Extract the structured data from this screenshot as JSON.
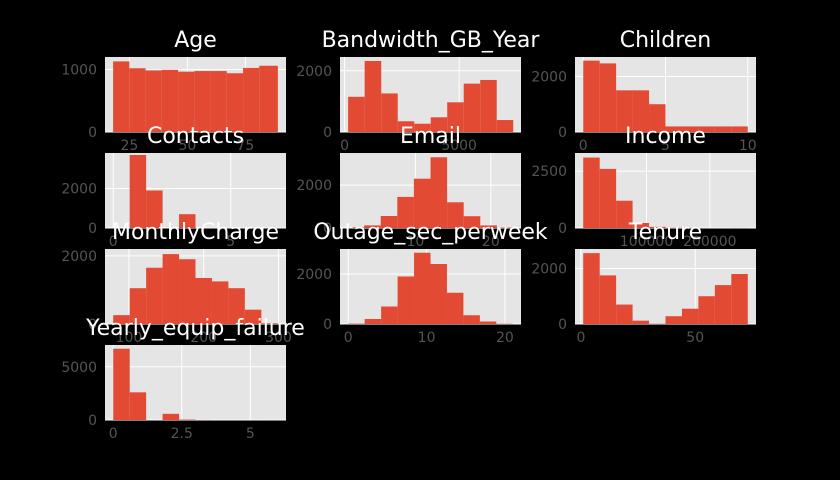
{
  "figure": {
    "background": "#000000",
    "panel_background": "#e5e5e5",
    "grid_color": "#ffffff",
    "bar_color": "#e24a33",
    "title_color": "#ffffff",
    "tick_color": "#555555"
  },
  "chart_data": [
    {
      "type": "bar",
      "title": "Age",
      "grid": true,
      "bins": [
        [
          18,
          25
        ],
        [
          25,
          32
        ],
        [
          32,
          39
        ],
        [
          39,
          46
        ],
        [
          46,
          53
        ],
        [
          53,
          60
        ],
        [
          60,
          67
        ],
        [
          67,
          74
        ],
        [
          74,
          81
        ],
        [
          81,
          89
        ]
      ],
      "values": [
        1130,
        1020,
        985,
        995,
        965,
        975,
        975,
        940,
        1025,
        1060
      ],
      "xlim": [
        14.5,
        92.5
      ],
      "ylim": [
        0,
        1200
      ],
      "xticks": [
        25,
        50,
        75
      ],
      "yticks": [
        0,
        1000
      ]
    },
    {
      "type": "bar",
      "title": "Bandwidth_GB_Year",
      "grid": true,
      "bins": [
        [
          155,
          875
        ],
        [
          875,
          1600
        ],
        [
          1600,
          2320
        ],
        [
          2320,
          3040
        ],
        [
          3040,
          3760
        ],
        [
          3760,
          4480
        ],
        [
          4480,
          5200
        ],
        [
          5200,
          5920
        ],
        [
          5920,
          6640
        ],
        [
          6640,
          7360
        ]
      ],
      "values": [
        1150,
        2320,
        1260,
        350,
        270,
        480,
        970,
        1580,
        1700,
        390
      ],
      "xlim": [
        -200,
        7700
      ],
      "ylim": [
        0,
        2450
      ],
      "xticks": [
        0,
        5000
      ],
      "yticks": [
        0,
        2000
      ]
    },
    {
      "type": "bar",
      "title": "Children",
      "grid": true,
      "bins": [
        [
          0,
          1
        ],
        [
          1,
          2
        ],
        [
          2,
          3
        ],
        [
          3,
          4
        ],
        [
          4,
          5
        ],
        [
          5,
          6
        ],
        [
          6,
          7
        ],
        [
          7,
          8
        ],
        [
          8,
          9
        ],
        [
          9,
          10
        ]
      ],
      "values": [
        2570,
        2470,
        1500,
        1500,
        1000,
        200,
        200,
        200,
        200,
        200
      ],
      "xlim": [
        -0.5,
        10.5
      ],
      "ylim": [
        0,
        2700
      ],
      "xticks": [
        0,
        5,
        10
      ],
      "yticks": [
        0,
        2000
      ]
    },
    {
      "type": "bar",
      "title": "Contacts",
      "grid": true,
      "bins": [
        [
          0,
          0.7
        ],
        [
          0.7,
          1.4
        ],
        [
          1.4,
          2.1
        ],
        [
          2.1,
          2.8
        ],
        [
          2.8,
          3.5
        ],
        [
          3.5,
          4.2
        ],
        [
          4.2,
          4.9
        ],
        [
          4.9,
          5.6
        ],
        [
          5.6,
          6.3
        ],
        [
          6.3,
          7
        ]
      ],
      "values": [
        0,
        3700,
        1900,
        0,
        700,
        0,
        0,
        0,
        0,
        0
      ],
      "xlim": [
        -0.35,
        7.35
      ],
      "ylim": [
        0,
        3800
      ],
      "xticks": [
        0,
        5
      ],
      "yticks": [
        0,
        2000
      ]
    },
    {
      "type": "bar",
      "title": "Email",
      "grid": true,
      "bins": [
        [
          1,
          3.2
        ],
        [
          3.2,
          5.4
        ],
        [
          5.4,
          7.6
        ],
        [
          7.6,
          9.8
        ],
        [
          9.8,
          12
        ],
        [
          12,
          14.2
        ],
        [
          14.2,
          16.4
        ],
        [
          16.4,
          18.6
        ],
        [
          18.6,
          20.8
        ],
        [
          20.8,
          23
        ]
      ],
      "values": [
        30,
        120,
        560,
        1450,
        2300,
        3300,
        1200,
        550,
        120,
        20
      ],
      "xlim": [
        0,
        24
      ],
      "ylim": [
        0,
        3500
      ],
      "xticks": [
        10,
        20
      ],
      "yticks": [
        0,
        2000
      ]
    },
    {
      "type": "bar",
      "title": "Income",
      "grid": true,
      "bins": [
        [
          0,
          26000
        ],
        [
          26000,
          52000
        ],
        [
          52000,
          78000
        ],
        [
          78000,
          104000
        ],
        [
          104000,
          130000
        ],
        [
          130000,
          156000
        ],
        [
          156000,
          182000
        ],
        [
          182000,
          208000
        ],
        [
          208000,
          234000
        ],
        [
          234000,
          260000
        ]
      ],
      "values": [
        3100,
        2600,
        1200,
        220,
        50,
        10,
        5,
        0,
        0,
        3
      ],
      "xlim": [
        -13000,
        273000
      ],
      "ylim": [
        0,
        3300
      ],
      "xticks": [
        100000,
        200000
      ],
      "yticks": [
        0,
        2500
      ]
    },
    {
      "type": "bar",
      "title": "MonthlyCharge",
      "grid": true,
      "bins": [
        [
          79,
          101
        ],
        [
          101,
          123
        ],
        [
          123,
          145
        ],
        [
          145,
          167
        ],
        [
          167,
          189
        ],
        [
          189,
          211
        ],
        [
          211,
          233
        ],
        [
          233,
          255
        ],
        [
          255,
          277
        ],
        [
          277,
          299
        ]
      ],
      "values": [
        260,
        1050,
        1650,
        2050,
        1900,
        1350,
        1250,
        1050,
        420,
        20
      ],
      "xlim": [
        68,
        310
      ],
      "ylim": [
        0,
        2200
      ],
      "xticks": [
        100,
        200,
        300
      ],
      "yticks": [
        0,
        2000
      ]
    },
    {
      "type": "bar",
      "title": "Outage_sec_perweek",
      "grid": true,
      "bins": [
        [
          0,
          2.1
        ],
        [
          2.1,
          4.2
        ],
        [
          4.2,
          6.3
        ],
        [
          6.3,
          8.4
        ],
        [
          8.4,
          10.5
        ],
        [
          10.5,
          12.6
        ],
        [
          12.6,
          14.7
        ],
        [
          14.7,
          16.8
        ],
        [
          16.8,
          18.9
        ],
        [
          18.9,
          21
        ]
      ],
      "values": [
        15,
        200,
        700,
        1900,
        2850,
        2400,
        1250,
        350,
        100,
        10
      ],
      "xlim": [
        -1.05,
        22.05
      ],
      "ylim": [
        0,
        3000
      ],
      "xticks": [
        0,
        10,
        20
      ],
      "yticks": [
        0,
        2000
      ]
    },
    {
      "type": "bar",
      "title": "Tenure",
      "grid": true,
      "bins": [
        [
          1,
          8.2
        ],
        [
          8.2,
          15.4
        ],
        [
          15.4,
          22.6
        ],
        [
          22.6,
          29.8
        ],
        [
          29.8,
          37
        ],
        [
          37,
          44.2
        ],
        [
          44.2,
          51.4
        ],
        [
          51.4,
          58.6
        ],
        [
          58.6,
          65.8
        ],
        [
          65.8,
          73
        ]
      ],
      "values": [
        2550,
        1750,
        700,
        120,
        10,
        280,
        550,
        1000,
        1400,
        1800
      ],
      "xlim": [
        -2.6,
        76.6
      ],
      "ylim": [
        0,
        2700
      ],
      "xticks": [
        0,
        50
      ],
      "yticks": [
        0,
        2000
      ]
    },
    {
      "type": "bar",
      "title": "Yearly_equip_failure",
      "grid": true,
      "bins": [
        [
          0,
          0.6
        ],
        [
          0.6,
          1.2
        ],
        [
          1.2,
          1.8
        ],
        [
          1.8,
          2.4
        ],
        [
          2.4,
          3
        ],
        [
          3,
          3.6
        ],
        [
          3.6,
          4.2
        ],
        [
          4.2,
          4.8
        ],
        [
          4.8,
          5.4
        ],
        [
          5.4,
          6
        ]
      ],
      "values": [
        6700,
        2600,
        0,
        580,
        40,
        5,
        0,
        0,
        0,
        3
      ],
      "xlim": [
        -0.3,
        6.3
      ],
      "ylim": [
        0,
        7050
      ],
      "xticks": [
        0,
        2.5,
        5
      ],
      "yticks": [
        0,
        5000
      ]
    }
  ]
}
